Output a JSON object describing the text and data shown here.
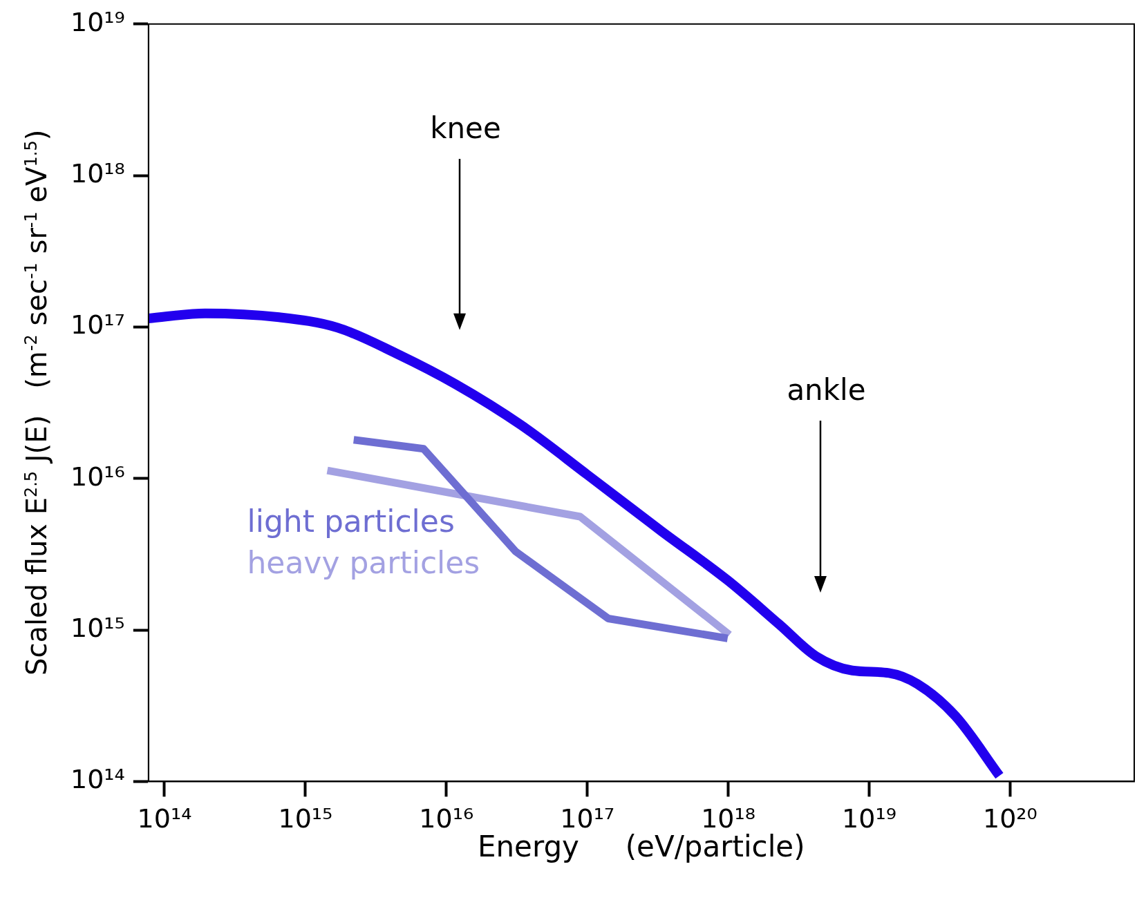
{
  "chart_data": {
    "type": "line",
    "xlabel": "Energy     (eV/particle)",
    "ylabel": "Scaled flux E$^{2.5}$ J(E)   (m$^{-2}$ sec$^{-1}$ sr$^{-1}$ eV$^{1.5}$)",
    "log": "xy",
    "grid": false,
    "legend": "left",
    "marker": "none",
    "line_style": "solid",
    "xlim": [
      77000000000000.0,
      7.6e+20
    ],
    "ylim": [
      100000000000000.0,
      1e+19
    ],
    "xticks": [
      {
        "value": 100000000000000.0,
        "label": "10¹⁴"
      },
      {
        "value": 1000000000000000.0,
        "label": "10¹⁵"
      },
      {
        "value": 1e+16,
        "label": "10¹⁶"
      },
      {
        "value": 1e+17,
        "label": "10¹⁷"
      },
      {
        "value": 1e+18,
        "label": "10¹⁸"
      },
      {
        "value": 1e+19,
        "label": "10¹⁹"
      },
      {
        "value": 1e+20,
        "label": "10²⁰"
      }
    ],
    "yticks": [
      {
        "value": 100000000000000.0,
        "label": "10¹⁴"
      },
      {
        "value": 1000000000000000.0,
        "label": "10¹⁵"
      },
      {
        "value": 1e+16,
        "label": "10¹⁶"
      },
      {
        "value": 1e+17,
        "label": "10¹⁷"
      },
      {
        "value": 1e+18,
        "label": "10¹⁸"
      },
      {
        "value": 1e+19,
        "label": "10¹⁹"
      }
    ],
    "series": [
      {
        "color": "#2200ee",
        "x": [
          77000000000000.0,
          194000000000000.0,
          650000000000000.0,
          1690000000000000.0,
          4400000000000000.0,
          1.16e+16,
          3.4e+16,
          1e+17,
          3.35e+17,
          9.9e+17,
          2.3e+18,
          4.2e+18,
          7.6e+18,
          1.38e+19,
          2.2e+19,
          4.1e+19,
          8.4e+19
        ],
        "values": [
          1.14e+17,
          1.23e+17,
          1.16e+17,
          9.9e+16,
          6.7e+16,
          4.2e+16,
          2.25e+16,
          1.06e+16,
          4500000000000000.0,
          2130000000000000.0,
          1090000000000000.0,
          670000000000000.0,
          540000000000000.0,
          520000000000000.0,
          440000000000000.0,
          270000000000000.0,
          109000000000000.0
        ]
      },
      {
        "name": "light particles",
        "color": "#6e6ed2",
        "x": [
          2200000000000000.0,
          6900000000000000.0,
          3.1e+16,
          1.41e+17,
          9.9e+17
        ],
        "values": [
          1.8e+16,
          1.57e+16,
          3300000000000000.0,
          1190000000000000.0,
          880000000000000.0
        ]
      },
      {
        "name": "heavy particles",
        "color": "#a3a1e2",
        "x": [
          1430000000000000.0,
          8.9e+16,
          1.02e+18
        ],
        "values": [
          1.13e+16,
          5600000000000000.0,
          930000000000000.0
        ]
      }
    ],
    "annotations": [
      "knee",
      "ankle"
    ]
  }
}
